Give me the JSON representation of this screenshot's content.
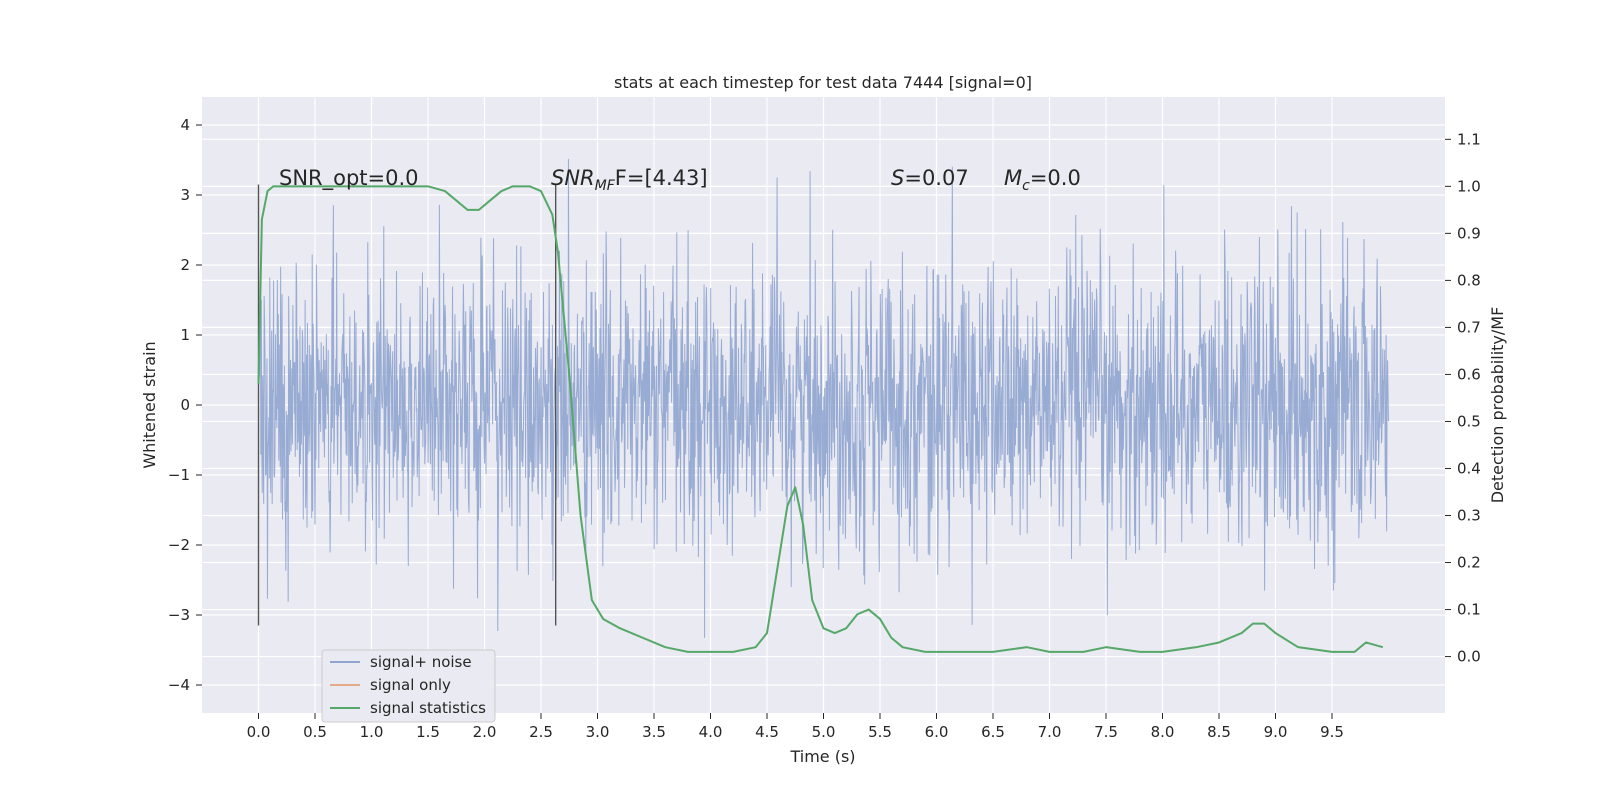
{
  "chart_data": {
    "type": "line",
    "title": "stats at each timestep for test data 7444 [signal=0]",
    "xlabel": "Time (s)",
    "ylabel_left": "Whitened strain",
    "ylabel_right": "Detection probability/MF",
    "xlim": [
      -0.5,
      10.5
    ],
    "ylim_left": [
      -4.4,
      4.4
    ],
    "ylim_right": [
      -0.12,
      1.19
    ],
    "x_ticks": [
      "0.0",
      "0.5",
      "1.0",
      "1.5",
      "2.0",
      "2.5",
      "3.0",
      "3.5",
      "4.0",
      "4.5",
      "5.0",
      "5.5",
      "6.0",
      "6.5",
      "7.0",
      "7.5",
      "8.0",
      "8.5",
      "9.0",
      "9.5"
    ],
    "y_left_ticks": [
      "4",
      "3",
      "2",
      "1",
      "0",
      "−1",
      "−2",
      "−3",
      "−4"
    ],
    "y_right_ticks": [
      "1.1",
      "1.0",
      "0.9",
      "0.8",
      "0.7",
      "0.6",
      "0.5",
      "0.4",
      "0.3",
      "0.2",
      "0.1",
      "0.0"
    ],
    "grid": true,
    "legend_position": "lower-left",
    "annotations": {
      "snr_opt": "SNR_opt=0.0",
      "snr_mf_label": "SNR",
      "snr_mf_sub": "MF",
      "snr_mf_value": "F=[4.43]",
      "s_label": "S",
      "s_value": "=0.07",
      "mc_label": "M",
      "mc_sub": "c",
      "mc_value": "=0.0"
    },
    "vertical_markers": [
      0.0,
      2.63
    ],
    "series": [
      {
        "name": "signal+ noise",
        "color": "#8fa4cf",
        "description_range": [
          -4.0,
          4.05
        ],
        "x_range": [
          0.0,
          10.0
        ]
      },
      {
        "name": "signal only",
        "color": "#e5a98a",
        "values": []
      },
      {
        "name": "signal statistics",
        "color": "#55a868",
        "x": [
          0.0,
          0.03,
          0.08,
          0.13,
          0.2,
          0.3,
          0.5,
          0.8,
          1.0,
          1.3,
          1.5,
          1.65,
          1.75,
          1.85,
          1.95,
          2.05,
          2.15,
          2.25,
          2.4,
          2.5,
          2.6,
          2.65,
          2.75,
          2.85,
          2.95,
          3.05,
          3.2,
          3.4,
          3.6,
          3.8,
          4.0,
          4.2,
          4.4,
          4.5,
          4.6,
          4.68,
          4.75,
          4.82,
          4.9,
          5.0,
          5.1,
          5.2,
          5.3,
          5.4,
          5.5,
          5.6,
          5.7,
          5.9,
          6.2,
          6.5,
          6.8,
          7.0,
          7.3,
          7.5,
          7.8,
          8.0,
          8.3,
          8.5,
          8.7,
          8.8,
          8.9,
          9.0,
          9.2,
          9.5,
          9.7,
          9.8,
          9.95
        ],
        "y": [
          0.58,
          0.93,
          0.99,
          1.0,
          1.0,
          1.0,
          1.0,
          1.0,
          1.0,
          1.0,
          1.0,
          0.99,
          0.97,
          0.95,
          0.95,
          0.97,
          0.99,
          1.0,
          1.0,
          0.99,
          0.94,
          0.86,
          0.6,
          0.3,
          0.12,
          0.08,
          0.06,
          0.04,
          0.02,
          0.01,
          0.01,
          0.01,
          0.02,
          0.05,
          0.2,
          0.32,
          0.36,
          0.28,
          0.12,
          0.06,
          0.05,
          0.06,
          0.09,
          0.1,
          0.08,
          0.04,
          0.02,
          0.01,
          0.01,
          0.01,
          0.02,
          0.01,
          0.01,
          0.02,
          0.01,
          0.01,
          0.02,
          0.03,
          0.05,
          0.07,
          0.07,
          0.05,
          0.02,
          0.01,
          0.01,
          0.03,
          0.02
        ]
      }
    ]
  }
}
